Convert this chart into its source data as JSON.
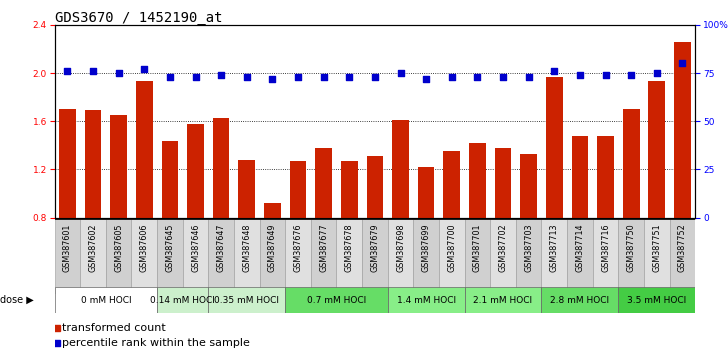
{
  "title": "GDS3670 / 1452190_at",
  "samples": [
    "GSM387601",
    "GSM387602",
    "GSM387605",
    "GSM387606",
    "GSM387645",
    "GSM387646",
    "GSM387647",
    "GSM387648",
    "GSM387649",
    "GSM387676",
    "GSM387677",
    "GSM387678",
    "GSM387679",
    "GSM387698",
    "GSM387699",
    "GSM387700",
    "GSM387701",
    "GSM387702",
    "GSM387703",
    "GSM387713",
    "GSM387714",
    "GSM387716",
    "GSM387750",
    "GSM387751",
    "GSM387752"
  ],
  "red_values": [
    1.7,
    1.69,
    1.65,
    1.93,
    1.44,
    1.58,
    1.63,
    1.28,
    0.92,
    1.27,
    1.38,
    1.27,
    1.31,
    1.61,
    1.22,
    1.35,
    1.42,
    1.38,
    1.33,
    1.97,
    1.48,
    1.48,
    1.7,
    1.93,
    2.26
  ],
  "blue_values": [
    76,
    76,
    75,
    77,
    73,
    73,
    74,
    73,
    72,
    73,
    73,
    73,
    73,
    75,
    72,
    73,
    73,
    73,
    73,
    76,
    74,
    74,
    74,
    75,
    80
  ],
  "dose_groups": [
    {
      "label": "0 mM HOCl",
      "start": 0,
      "end": 4,
      "color": "#ffffff"
    },
    {
      "label": "0.14 mM HOCl",
      "start": 4,
      "end": 6,
      "color": "#ccf0cc"
    },
    {
      "label": "0.35 mM HOCl",
      "start": 6,
      "end": 9,
      "color": "#ccf0cc"
    },
    {
      "label": "0.7 mM HOCl",
      "start": 9,
      "end": 13,
      "color": "#66dd66"
    },
    {
      "label": "1.4 mM HOCl",
      "start": 13,
      "end": 16,
      "color": "#88ee88"
    },
    {
      "label": "2.1 mM HOCl",
      "start": 16,
      "end": 19,
      "color": "#88ee88"
    },
    {
      "label": "2.8 mM HOCl",
      "start": 19,
      "end": 22,
      "color": "#66dd66"
    },
    {
      "label": "3.5 mM HOCl",
      "start": 22,
      "end": 25,
      "color": "#44cc44"
    }
  ],
  "ylim_left": [
    0.8,
    2.4
  ],
  "ylim_right": [
    0,
    100
  ],
  "yticks_left": [
    0.8,
    1.2,
    1.6,
    2.0,
    2.4
  ],
  "yticks_right": [
    0,
    25,
    50,
    75,
    100
  ],
  "bar_color": "#cc2200",
  "square_color": "#0000cc",
  "bg_color": "#ffffff",
  "title_fontsize": 10,
  "tick_fontsize": 6.5,
  "dose_fontsize": 6.5,
  "legend_fontsize": 8,
  "sample_fontsize": 5.8
}
